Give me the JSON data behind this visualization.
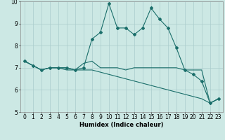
{
  "xlabel": "Humidex (Indice chaleur)",
  "ylabel": "",
  "background_color": "#cce8e4",
  "grid_color": "#aacccc",
  "line_color": "#1a6e6a",
  "x_hours": [
    0,
    1,
    2,
    3,
    4,
    5,
    6,
    7,
    8,
    9,
    10,
    11,
    12,
    13,
    14,
    15,
    16,
    17,
    18,
    19,
    20,
    21,
    22,
    23
  ],
  "series": [
    [
      7.3,
      7.1,
      6.9,
      7.0,
      7.0,
      7.0,
      6.9,
      7.0,
      8.3,
      8.6,
      9.9,
      8.8,
      8.8,
      8.5,
      8.8,
      9.7,
      9.2,
      8.8,
      7.9,
      6.9,
      6.7,
      6.4,
      5.4,
      5.6
    ],
    [
      7.3,
      7.1,
      6.9,
      7.0,
      7.0,
      7.0,
      6.9,
      7.2,
      7.3,
      7.0,
      7.0,
      7.0,
      6.9,
      7.0,
      7.0,
      7.0,
      7.0,
      7.0,
      7.0,
      6.9,
      6.9,
      6.9,
      5.4,
      5.6
    ],
    [
      7.3,
      7.1,
      6.9,
      7.0,
      7.0,
      6.9,
      6.9,
      6.9,
      6.9,
      6.8,
      6.7,
      6.6,
      6.5,
      6.4,
      6.3,
      6.2,
      6.1,
      6.0,
      5.9,
      5.8,
      5.7,
      5.6,
      5.4,
      5.6
    ]
  ],
  "ylim": [
    5.0,
    10.0
  ],
  "xlim_min": -0.5,
  "xlim_max": 23.5,
  "yticks": [
    5,
    6,
    7,
    8,
    9,
    10
  ],
  "xticks": [
    0,
    1,
    2,
    3,
    4,
    5,
    6,
    7,
    8,
    9,
    10,
    11,
    12,
    13,
    14,
    15,
    16,
    17,
    18,
    19,
    20,
    21,
    22,
    23
  ],
  "marker": "D",
  "marker_size": 2.0,
  "line_width": 0.8,
  "label_fontsize": 6,
  "tick_fontsize": 5.5
}
